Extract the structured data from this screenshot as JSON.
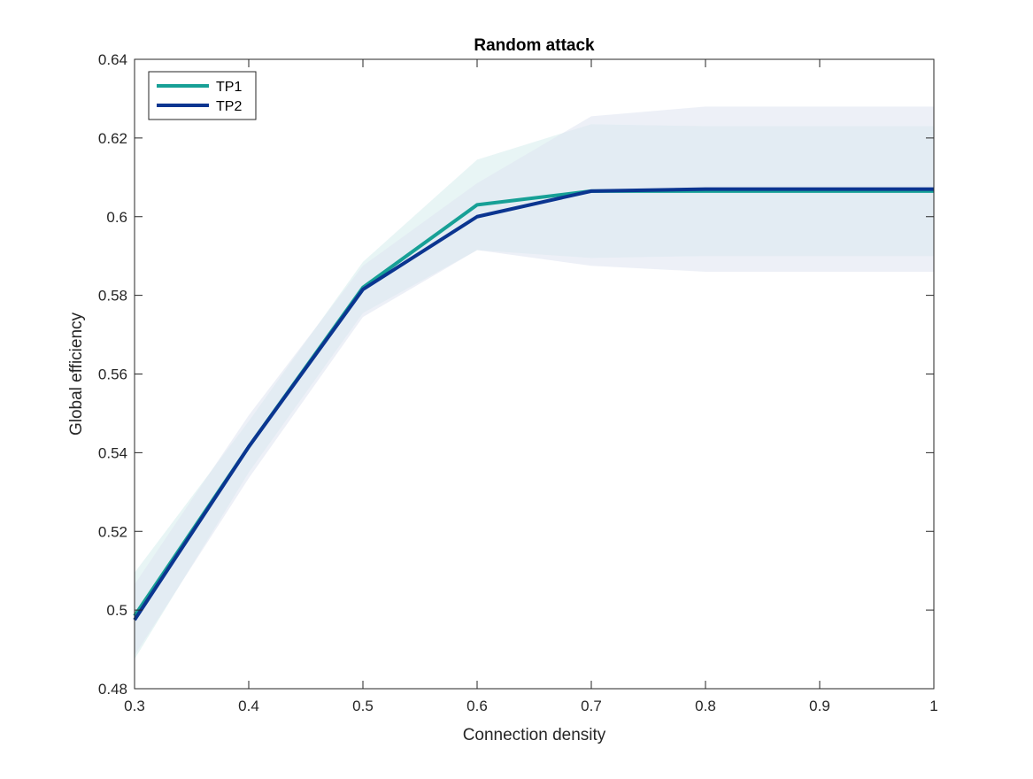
{
  "chart_data": {
    "type": "line",
    "title": "Random attack",
    "xlabel": "Connection density",
    "ylabel": "Global efficiency",
    "xlim": [
      0.3,
      1.0
    ],
    "ylim": [
      0.48,
      0.64
    ],
    "xticks": [
      "0.3",
      "0.4",
      "0.5",
      "0.6",
      "0.7",
      "0.8",
      "0.9",
      "1"
    ],
    "yticks": [
      "0.48",
      "0.5",
      "0.52",
      "0.54",
      "0.56",
      "0.58",
      "0.6",
      "0.62",
      "0.64"
    ],
    "xtick_values": [
      0.3,
      0.4,
      0.5,
      0.6,
      0.7,
      0.8,
      0.9,
      1.0
    ],
    "ytick_values": [
      0.48,
      0.5,
      0.52,
      0.54,
      0.56,
      0.58,
      0.6,
      0.62,
      0.64
    ],
    "x": [
      0.3,
      0.4,
      0.5,
      0.6,
      0.7,
      0.8,
      0.9,
      1.0
    ],
    "grid": false,
    "legend_position": "top-left",
    "series": [
      {
        "name": "TP1",
        "color": "#17a096",
        "shade_color": "#d6ecec",
        "values": [
          0.4985,
          0.5415,
          0.582,
          0.603,
          0.6065,
          0.6065,
          0.6065,
          0.6065
        ],
        "upper": [
          0.5095,
          0.548,
          0.5885,
          0.6145,
          0.6235,
          0.623,
          0.623,
          0.623
        ],
        "lower": [
          0.4875,
          0.535,
          0.5755,
          0.5915,
          0.5895,
          0.59,
          0.59,
          0.59
        ]
      },
      {
        "name": "TP2",
        "color": "#0b3590",
        "shade_color": "#dfe3f0",
        "values": [
          0.4975,
          0.5415,
          0.5815,
          0.6,
          0.6065,
          0.607,
          0.607,
          0.607
        ],
        "upper": [
          0.5065,
          0.5495,
          0.5875,
          0.6085,
          0.6255,
          0.628,
          0.628,
          0.628
        ],
        "lower": [
          0.4885,
          0.5335,
          0.5745,
          0.5915,
          0.5875,
          0.586,
          0.586,
          0.586
        ]
      }
    ]
  }
}
